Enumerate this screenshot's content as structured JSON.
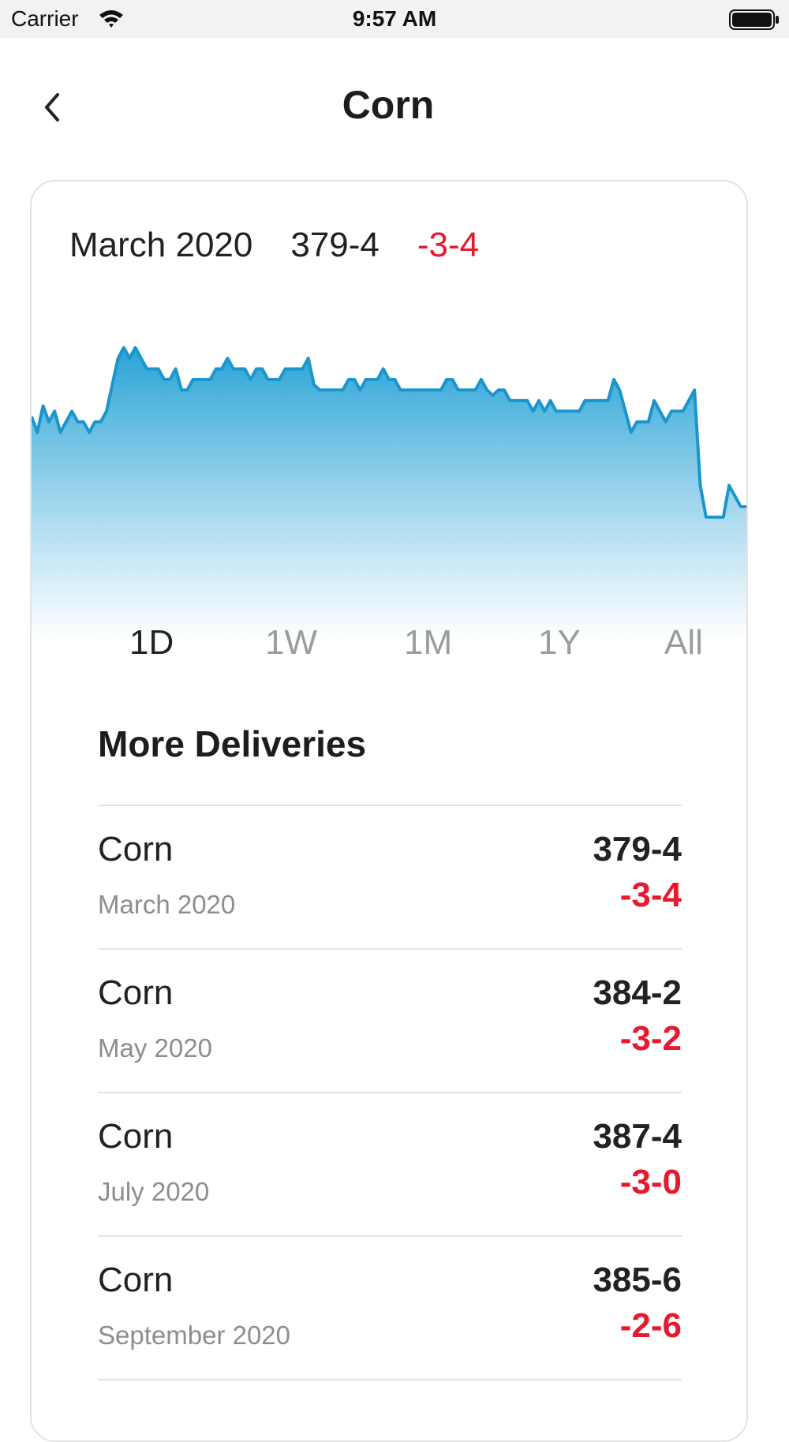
{
  "status_bar": {
    "carrier": "Carrier",
    "time": "9:57 AM",
    "icons": [
      "wifi-icon",
      "battery-icon"
    ]
  },
  "nav": {
    "title": "Corn",
    "back_icon": "chevron-left-icon"
  },
  "quote": {
    "month": "March 2020",
    "price": "379-4",
    "change": "-3-4",
    "change_color": "#e8182e"
  },
  "chart_data": {
    "type": "area",
    "line_color": "#1a96cc",
    "fill_top_color": "#29a3d6",
    "fill_bottom_color": "#ffffff",
    "values": [
      380.2,
      379.9,
      380.4,
      380.1,
      380.3,
      379.9,
      380.1,
      380.3,
      380.1,
      380.1,
      379.9,
      380.1,
      380.1,
      380.3,
      380.8,
      381.3,
      381.5,
      381.3,
      381.5,
      381.3,
      381.1,
      381.1,
      381.1,
      380.9,
      380.9,
      381.1,
      380.7,
      380.7,
      380.9,
      380.9,
      380.9,
      380.9,
      381.1,
      381.1,
      381.3,
      381.1,
      381.1,
      381.1,
      380.9,
      381.1,
      381.1,
      380.9,
      380.9,
      380.9,
      381.1,
      381.1,
      381.1,
      381.1,
      381.3,
      380.8,
      380.7,
      380.7,
      380.7,
      380.7,
      380.7,
      380.9,
      380.9,
      380.7,
      380.9,
      380.9,
      380.9,
      381.1,
      380.9,
      380.9,
      380.7,
      380.7,
      380.7,
      380.7,
      380.7,
      380.7,
      380.7,
      380.7,
      380.9,
      380.9,
      380.7,
      380.7,
      380.7,
      380.7,
      380.9,
      380.7,
      380.6,
      380.7,
      380.7,
      380.5,
      380.5,
      380.5,
      380.5,
      380.3,
      380.5,
      380.3,
      380.5,
      380.3,
      380.3,
      380.3,
      380.3,
      380.3,
      380.5,
      380.5,
      380.5,
      380.5,
      380.5,
      380.9,
      380.7,
      380.3,
      379.9,
      380.1,
      380.1,
      380.1,
      380.5,
      380.3,
      380.1,
      380.3,
      380.3,
      380.3,
      380.5,
      380.7,
      378.9,
      378.3,
      378.3,
      378.3,
      378.3,
      378.9,
      378.7,
      378.5,
      378.5
    ]
  },
  "ranges": {
    "items": [
      "1D",
      "1W",
      "1M",
      "1Y",
      "All"
    ],
    "active": "1D"
  },
  "deliveries": {
    "title": "More Deliveries",
    "items": [
      {
        "name": "Corn",
        "month": "March 2020",
        "price": "379-4",
        "change": "-3-4"
      },
      {
        "name": "Corn",
        "month": "May 2020",
        "price": "384-2",
        "change": "-3-2"
      },
      {
        "name": "Corn",
        "month": "July 2020",
        "price": "387-4",
        "change": "-3-0"
      },
      {
        "name": "Corn",
        "month": "September 2020",
        "price": "385-6",
        "change": "-2-6"
      }
    ]
  }
}
